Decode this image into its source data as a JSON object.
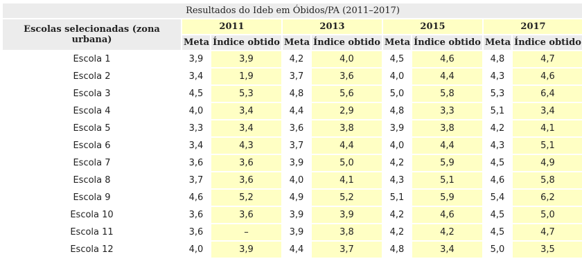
{
  "table": {
    "title": "Resultados do Ideb em Óbidos/PA (2011–2017)",
    "row_header": "Escolas selecionadas (zona urbana)",
    "columns": [
      {
        "year": "2011",
        "meta": "Meta",
        "index": "Índice obtido"
      },
      {
        "year": "2013",
        "meta": "Meta",
        "index": "Índice obtido"
      },
      {
        "year": "2015",
        "meta": "Meta",
        "index": "Índice obtido"
      },
      {
        "year": "2017",
        "meta": "Meta",
        "index": "Índice obtido"
      }
    ],
    "rows": [
      [
        "Escola 1",
        "3,9",
        "3,9",
        "4,2",
        "4,0",
        "4,5",
        "4,6",
        "4,8",
        "4,7"
      ],
      [
        "Escola 2",
        "3,4",
        "1,9",
        "3,7",
        "3,6",
        "4,0",
        "4,4",
        "4,3",
        "4,6"
      ],
      [
        "Escola 3",
        "4,5",
        "5,3",
        "4,8",
        "5,6",
        "5,0",
        "5,8",
        "5,3",
        "6,4"
      ],
      [
        "Escola 4",
        "4,0",
        "3,4",
        "4,4",
        "2,9",
        "4,8",
        "3,3",
        "5,1",
        "3,4"
      ],
      [
        "Escola 5",
        "3,3",
        "3,4",
        "3,6",
        "3,8",
        "3,9",
        "3,8",
        "4,2",
        "4,1"
      ],
      [
        "Escola 6",
        "3,4",
        "4,3",
        "3,7",
        "4,4",
        "4,0",
        "4,4",
        "4,3",
        "5,1"
      ],
      [
        "Escola 7",
        "3,6",
        "3,6",
        "3,9",
        "5,0",
        "4,2",
        "5,9",
        "4,5",
        "4,9"
      ],
      [
        "Escola 8",
        "3,7",
        "3,6",
        "4,0",
        "4,1",
        "4,3",
        "5,1",
        "4,6",
        "5,8"
      ],
      [
        "Escola 9",
        "4,6",
        "5,2",
        "4,9",
        "5,2",
        "5,1",
        "5,9",
        "5,4",
        "6,2"
      ],
      [
        "Escola 10",
        "3,6",
        "3,6",
        "3,9",
        "3,9",
        "4,2",
        "4,6",
        "4,5",
        "5,0"
      ],
      [
        "Escola 11",
        "3,6",
        "–",
        "3,9",
        "3,8",
        "4,2",
        "4,2",
        "4,5",
        "4,7"
      ],
      [
        "Escola 12",
        "4,0",
        "3,9",
        "4,4",
        "3,7",
        "4,8",
        "3,4",
        "5,0",
        "3,5"
      ]
    ]
  }
}
